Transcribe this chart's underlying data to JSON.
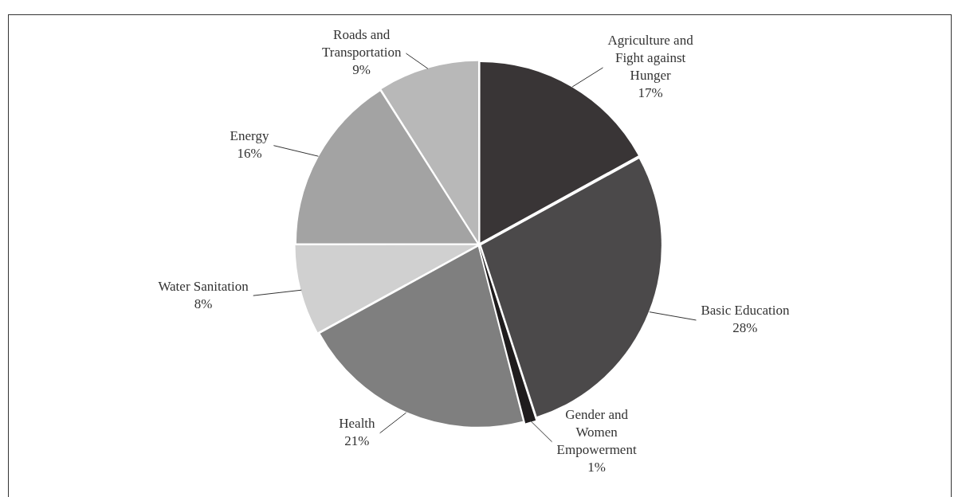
{
  "chart_data": {
    "type": "pie",
    "categories": [
      "Agriculture and Fight against Hunger",
      "Basic Education",
      "Gender and Women Empowerment",
      "Health",
      "Water Sanitation",
      "Energy",
      "Roads and Transportation"
    ],
    "values": [
      17,
      28,
      1,
      21,
      8,
      16,
      9
    ],
    "colors": [
      "#393536",
      "#4b494a",
      "#1f1c1d",
      "#7f7f7f",
      "#d0d0d0",
      "#a3a3a3",
      "#b8b8b8"
    ],
    "value_labels": [
      "17%",
      "28%",
      "1%",
      "21%",
      "8%",
      "16%",
      "9%"
    ],
    "legend": false
  }
}
